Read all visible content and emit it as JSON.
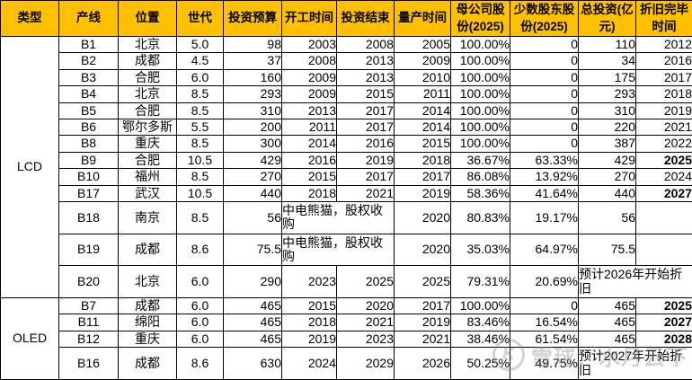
{
  "table": {
    "headers": [
      "类型",
      "产线",
      "位置",
      "世代",
      "投资预算",
      "开工时间",
      "投资结束",
      "量产时间",
      "母公司股份(2025)",
      "少数股东股份(2025)",
      "总投资(亿元)",
      "折旧完毕时间"
    ],
    "groups": [
      {
        "type": "LCD",
        "rows": [
          {
            "cells": [
              {
                "text": "B1"
              },
              {
                "text": "北京"
              },
              {
                "text": "5.0"
              },
              {
                "text": "98"
              },
              {
                "text": "2003"
              },
              {
                "text": "2008"
              },
              {
                "text": "2005"
              },
              {
                "text": "100.00%"
              },
              {
                "text": "0"
              },
              {
                "text": "110"
              },
              {
                "text": "2012"
              }
            ]
          },
          {
            "cells": [
              {
                "text": "B2"
              },
              {
                "text": "成都"
              },
              {
                "text": "4.5"
              },
              {
                "text": "37"
              },
              {
                "text": "2008"
              },
              {
                "text": "2013"
              },
              {
                "text": "2009"
              },
              {
                "text": "100.00%"
              },
              {
                "text": "0"
              },
              {
                "text": "34"
              },
              {
                "text": "2016"
              }
            ]
          },
          {
            "cells": [
              {
                "text": "B3"
              },
              {
                "text": "合肥"
              },
              {
                "text": "6.0"
              },
              {
                "text": "160"
              },
              {
                "text": "2009"
              },
              {
                "text": "2013"
              },
              {
                "text": "2010"
              },
              {
                "text": "100.00%"
              },
              {
                "text": "0"
              },
              {
                "text": "175"
              },
              {
                "text": "2017"
              }
            ]
          },
          {
            "cells": [
              {
                "text": "B4"
              },
              {
                "text": "北京"
              },
              {
                "text": "8.5"
              },
              {
                "text": "293"
              },
              {
                "text": "2009"
              },
              {
                "text": "2015"
              },
              {
                "text": "2011"
              },
              {
                "text": "100.00%"
              },
              {
                "text": "0"
              },
              {
                "text": "293"
              },
              {
                "text": "2018"
              }
            ]
          },
          {
            "cells": [
              {
                "text": "B5"
              },
              {
                "text": "合肥"
              },
              {
                "text": "8.5"
              },
              {
                "text": "310"
              },
              {
                "text": "2013"
              },
              {
                "text": "2017"
              },
              {
                "text": "2014"
              },
              {
                "text": "100.00%"
              },
              {
                "text": "0"
              },
              {
                "text": "310"
              },
              {
                "text": "2019"
              }
            ]
          },
          {
            "cells": [
              {
                "text": "B6"
              },
              {
                "text": "鄂尔多斯"
              },
              {
                "text": "5.5"
              },
              {
                "text": "200"
              },
              {
                "text": "2011"
              },
              {
                "text": "2017"
              },
              {
                "text": "2014"
              },
              {
                "text": "100.00%"
              },
              {
                "text": "0"
              },
              {
                "text": "220"
              },
              {
                "text": "2021"
              }
            ]
          },
          {
            "cells": [
              {
                "text": "B8"
              },
              {
                "text": "重庆"
              },
              {
                "text": "8.5"
              },
              {
                "text": "300"
              },
              {
                "text": "2014"
              },
              {
                "text": "2016"
              },
              {
                "text": "2015"
              },
              {
                "text": "100.00%"
              },
              {
                "text": "0"
              },
              {
                "text": "387"
              },
              {
                "text": "2022"
              }
            ]
          },
          {
            "cells": [
              {
                "text": "B9"
              },
              {
                "text": "合肥"
              },
              {
                "text": "10.5"
              },
              {
                "text": "429"
              },
              {
                "text": "2016"
              },
              {
                "text": "2019"
              },
              {
                "text": "2018"
              },
              {
                "text": "36.67%"
              },
              {
                "text": "63.33%"
              },
              {
                "text": "429"
              },
              {
                "text": "2025",
                "red": true
              }
            ]
          },
          {
            "cells": [
              {
                "text": "B10"
              },
              {
                "text": "福州"
              },
              {
                "text": "8.5"
              },
              {
                "text": "270"
              },
              {
                "text": "2015"
              },
              {
                "text": "2017"
              },
              {
                "text": "2017"
              },
              {
                "text": "86.08%"
              },
              {
                "text": "13.92%"
              },
              {
                "text": "270"
              },
              {
                "text": "2024"
              }
            ]
          },
          {
            "cells": [
              {
                "text": "B17"
              },
              {
                "text": "武汉"
              },
              {
                "text": "10.5"
              },
              {
                "text": "440"
              },
              {
                "text": "2018"
              },
              {
                "text": "2021"
              },
              {
                "text": "2019"
              },
              {
                "text": "58.36%"
              },
              {
                "text": "41.64%"
              },
              {
                "text": "440"
              },
              {
                "text": "2027",
                "red": true
              }
            ]
          },
          {
            "cells": [
              {
                "text": "B18"
              },
              {
                "text": "南京"
              },
              {
                "text": "8.5"
              },
              {
                "text": "56"
              },
              {
                "text": "中电熊猫，股权收购",
                "span": 2,
                "align": "left"
              },
              {
                "text": "2020"
              },
              {
                "text": "80.83%"
              },
              {
                "text": "19.17%"
              },
              {
                "text": "56"
              },
              {
                "text": ""
              }
            ]
          },
          {
            "cells": [
              {
                "text": "B19"
              },
              {
                "text": "成都"
              },
              {
                "text": "8.6"
              },
              {
                "text": "75.5"
              },
              {
                "text": "中电熊猫，股权收购",
                "span": 2,
                "align": "left"
              },
              {
                "text": "2020"
              },
              {
                "text": "35.03%"
              },
              {
                "text": "64.97%"
              },
              {
                "text": "75.5"
              },
              {
                "text": ""
              }
            ]
          },
          {
            "cells": [
              {
                "text": "B20"
              },
              {
                "text": "北京"
              },
              {
                "text": "6.0"
              },
              {
                "text": "290"
              },
              {
                "text": "2023"
              },
              {
                "text": "2025"
              },
              {
                "text": "2025"
              },
              {
                "text": "79.31%"
              },
              {
                "text": "20.69%"
              },
              {
                "text": "预计2026年开始折旧",
                "span": 2,
                "align": "left"
              }
            ]
          }
        ]
      },
      {
        "type": "OLED",
        "rows": [
          {
            "cells": [
              {
                "text": "B7"
              },
              {
                "text": "成都"
              },
              {
                "text": "6.0"
              },
              {
                "text": "465"
              },
              {
                "text": "2015"
              },
              {
                "text": "2020"
              },
              {
                "text": "2017"
              },
              {
                "text": "100.00%"
              },
              {
                "text": "0"
              },
              {
                "text": "465"
              },
              {
                "text": "2025",
                "red": true
              }
            ]
          },
          {
            "cells": [
              {
                "text": "B11"
              },
              {
                "text": "绵阳"
              },
              {
                "text": "6.0"
              },
              {
                "text": "465"
              },
              {
                "text": "2018"
              },
              {
                "text": "2021"
              },
              {
                "text": "2019"
              },
              {
                "text": "83.46%"
              },
              {
                "text": "16.54%"
              },
              {
                "text": "465"
              },
              {
                "text": "2027",
                "red": true
              }
            ]
          },
          {
            "cells": [
              {
                "text": "B12"
              },
              {
                "text": "重庆"
              },
              {
                "text": "6.0"
              },
              {
                "text": "465"
              },
              {
                "text": "2019"
              },
              {
                "text": "2023"
              },
              {
                "text": "2021"
              },
              {
                "text": "38.46%"
              },
              {
                "text": "61.54%"
              },
              {
                "text": "465"
              },
              {
                "text": "2028",
                "red": true
              }
            ]
          },
          {
            "cells": [
              {
                "text": "B16"
              },
              {
                "text": "成都"
              },
              {
                "text": "8.6"
              },
              {
                "text": "630"
              },
              {
                "text": "2024"
              },
              {
                "text": "2029"
              },
              {
                "text": "2026"
              },
              {
                "text": "50.25%"
              },
              {
                "text": "49.75%"
              },
              {
                "text": "预计2027年开始折旧",
                "span": 2,
                "align": "left"
              }
            ]
          }
        ]
      }
    ]
  },
  "watermark": {
    "logo_glyph": "K",
    "text": "雪球：水月云下"
  },
  "colors": {
    "header_bg": "#FFC000",
    "highlight_red": "#FF0000",
    "border": "#000000",
    "watermark_gray": "#8A8A8A"
  }
}
